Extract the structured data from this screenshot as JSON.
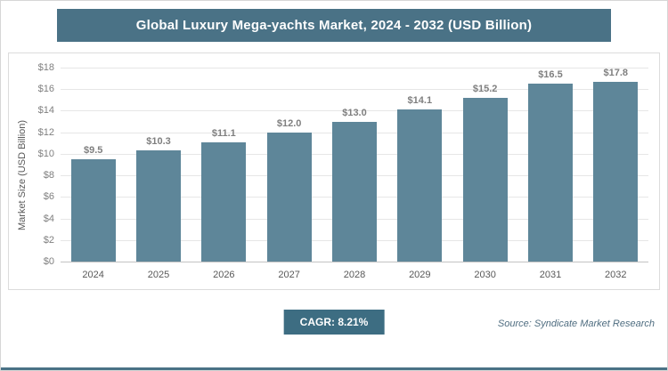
{
  "header": {
    "title": "Global Luxury Mega-yachts Market, 2024 - 2032 (USD Billion)"
  },
  "chart_data": {
    "type": "bar",
    "title": "Global Luxury Mega-yachts Market, 2024 - 2032 (USD Billion)",
    "categories": [
      "2024",
      "2025",
      "2026",
      "2027",
      "2028",
      "2029",
      "2030",
      "2031",
      "2032"
    ],
    "values": [
      9.5,
      10.3,
      11.1,
      12.0,
      13.0,
      14.1,
      15.2,
      16.5,
      17.8
    ],
    "value_labels": [
      "$9.5",
      "$10.3",
      "$11.1",
      "$12.0",
      "$13.0",
      "$14.1",
      "$15.2",
      "$16.5",
      "$17.8"
    ],
    "xlabel": "",
    "ylabel": "Market Size (USD Billion)",
    "ylim": [
      0,
      18
    ],
    "ytick_step": 2,
    "ytick_labels": [
      "$0",
      "$2",
      "$4",
      "$6",
      "$8",
      "$10",
      "$12",
      "$14",
      "$16",
      "$18"
    ],
    "grid": true,
    "legend": "none",
    "bar_color": "#5e8699"
  },
  "footer": {
    "cagr": "CAGR: 8.21%",
    "source": "Source: Syndicate Market Research"
  },
  "colors": {
    "header_bg": "#4a7286",
    "bar": "#5e8699",
    "badge_bg": "#3d6d82",
    "accent_line": "#4a7286"
  }
}
